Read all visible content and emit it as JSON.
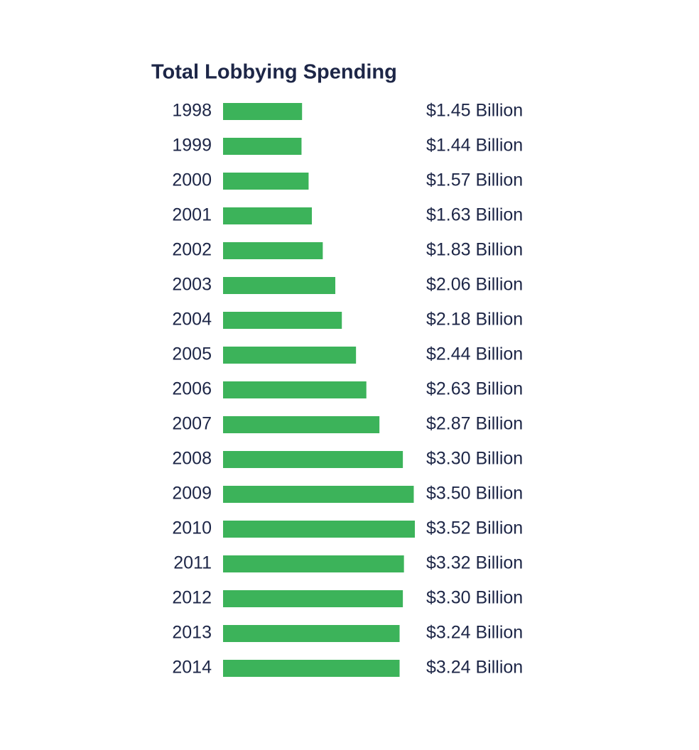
{
  "chart_data": {
    "type": "bar",
    "orientation": "horizontal",
    "title": "Total Lobbying Spending",
    "categories": [
      "1998",
      "1999",
      "2000",
      "2001",
      "2002",
      "2003",
      "2004",
      "2005",
      "2006",
      "2007",
      "2008",
      "2009",
      "2010",
      "2011",
      "2012",
      "2013",
      "2014"
    ],
    "values": [
      1.45,
      1.44,
      1.57,
      1.63,
      1.83,
      2.06,
      2.18,
      2.44,
      2.63,
      2.87,
      3.3,
      3.5,
      3.52,
      3.32,
      3.3,
      3.24,
      3.24
    ],
    "value_labels": [
      "$1.45 Billion",
      "$1.44 Billion",
      "$1.57 Billion",
      "$1.63 Billion",
      "$1.83 Billion",
      "$2.06 Billion",
      "$2.18 Billion",
      "$2.44 Billion",
      "$2.63 Billion",
      "$2.87 Billion",
      "$3.30 Billion",
      "$3.50 Billion",
      "$3.52 Billion",
      "$3.32 Billion",
      "$3.30 Billion",
      "$3.24 Billion",
      "$3.24 Billion"
    ],
    "color": "#3cb35a"
  }
}
